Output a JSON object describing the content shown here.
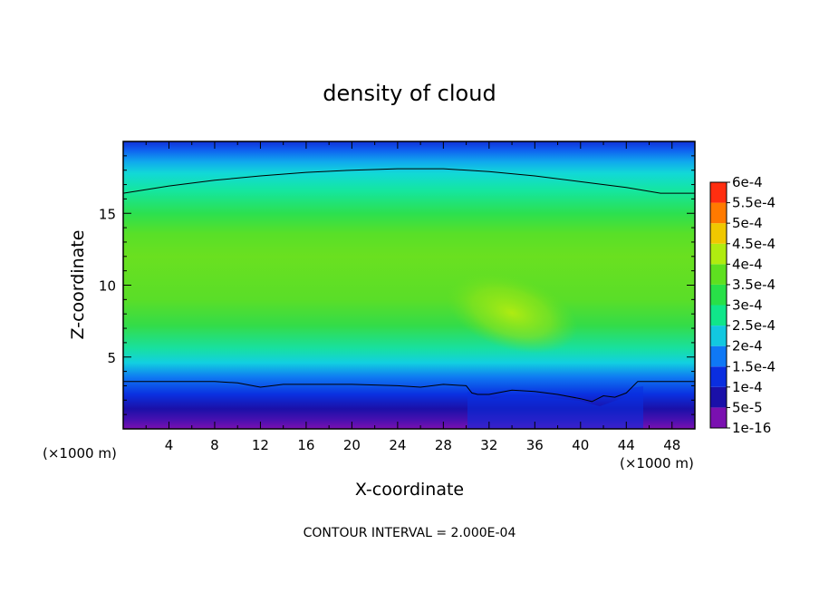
{
  "chart_data": {
    "type": "heatmap",
    "title": "density of cloud",
    "xlabel": "X-coordinate",
    "ylabel": "Z-coordinate",
    "x_unit": "(×1000 m)",
    "xlim": [
      0,
      50
    ],
    "ylim": [
      0,
      20
    ],
    "x_ticks": [
      4,
      8,
      12,
      16,
      20,
      24,
      28,
      32,
      36,
      40,
      44,
      48
    ],
    "y_ticks": [
      5,
      10,
      15
    ],
    "footer": "CONTOUR INTERVAL = 2.000E-04",
    "colorbar": {
      "levels": [
        "1e-16",
        "5e-5",
        "1e-4",
        "1.5e-4",
        "2e-4",
        "2.5e-4",
        "3e-4",
        "3.5e-4",
        "4e-4",
        "4.5e-4",
        "5e-4",
        "5.5e-4",
        "6e-4"
      ],
      "colors": [
        "#7a10b0",
        "#1a10a8",
        "#0a2ee0",
        "#0f78f5",
        "#12c8e0",
        "#10e68a",
        "#28e048",
        "#5ee020",
        "#b0ec10",
        "#f0c800",
        "#ff7a00",
        "#ff2e10",
        "#ff8a8a"
      ]
    },
    "contour_lines": [
      {
        "level": 0.0002,
        "x": [
          0,
          4,
          8,
          12,
          16,
          20,
          24,
          28,
          32,
          36,
          40,
          44,
          47,
          50
        ],
        "z": [
          16.4,
          16.9,
          17.3,
          17.6,
          17.85,
          18.0,
          18.1,
          18.1,
          17.9,
          17.6,
          17.2,
          16.8,
          16.4,
          16.4
        ]
      },
      {
        "level": 0.0001,
        "x": [
          0,
          4,
          8,
          10,
          12,
          14,
          16,
          20,
          24,
          26,
          28,
          30,
          30.5,
          31,
          32,
          34,
          36,
          38,
          40,
          41,
          42,
          43,
          44,
          45,
          48,
          50
        ],
        "z": [
          3.3,
          3.3,
          3.3,
          3.2,
          2.9,
          3.1,
          3.1,
          3.1,
          3.0,
          2.9,
          3.1,
          3.0,
          2.5,
          2.4,
          2.4,
          2.7,
          2.6,
          2.4,
          2.1,
          1.9,
          2.3,
          2.2,
          2.5,
          3.3,
          3.3,
          3.3
        ]
      }
    ]
  }
}
